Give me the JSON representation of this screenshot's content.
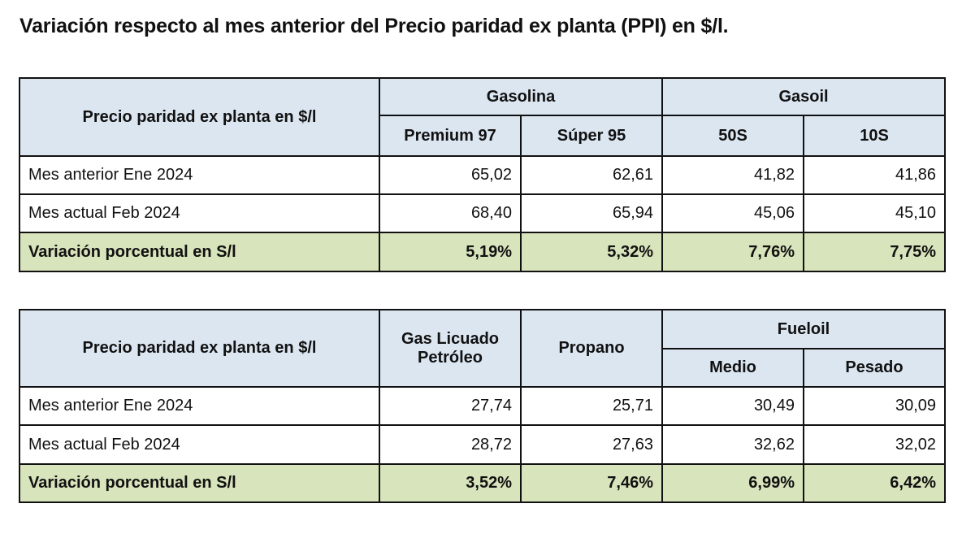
{
  "title": "Variación respecto al mes anterior del Precio paridad ex planta (PPI) en $/l.",
  "table1": {
    "corner": "Precio paridad ex planta en $/l",
    "groups": [
      "Gasolina",
      "Gasoil"
    ],
    "columns": [
      "Premium 97",
      "Súper 95",
      "50S",
      "10S"
    ],
    "rows": [
      {
        "label": "Mes anterior Ene 2024",
        "values": [
          "65,02",
          "62,61",
          "41,82",
          "41,86"
        ]
      },
      {
        "label": "Mes actual Feb 2024",
        "values": [
          "68,40",
          "65,94",
          "45,06",
          "45,10"
        ]
      },
      {
        "label": "Variación porcentual en S/l",
        "values": [
          "5,19%",
          "5,32%",
          "7,76%",
          "7,75%"
        ]
      }
    ]
  },
  "table2": {
    "corner": "Precio paridad ex planta en $/l",
    "columns_single": [
      "Gas Licuado Petróleo",
      "Propano"
    ],
    "group": "Fueloil",
    "columns": [
      "Medio",
      "Pesado"
    ],
    "rows": [
      {
        "label": "Mes anterior Ene 2024",
        "values": [
          "27,74",
          "25,71",
          "30,49",
          "30,09"
        ]
      },
      {
        "label": "Mes actual Feb 2024",
        "values": [
          "28,72",
          "27,63",
          "32,62",
          "32,02"
        ]
      },
      {
        "label": "Variación porcentual en S/l",
        "values": [
          "3,52%",
          "7,46%",
          "6,99%",
          "6,42%"
        ]
      }
    ]
  }
}
